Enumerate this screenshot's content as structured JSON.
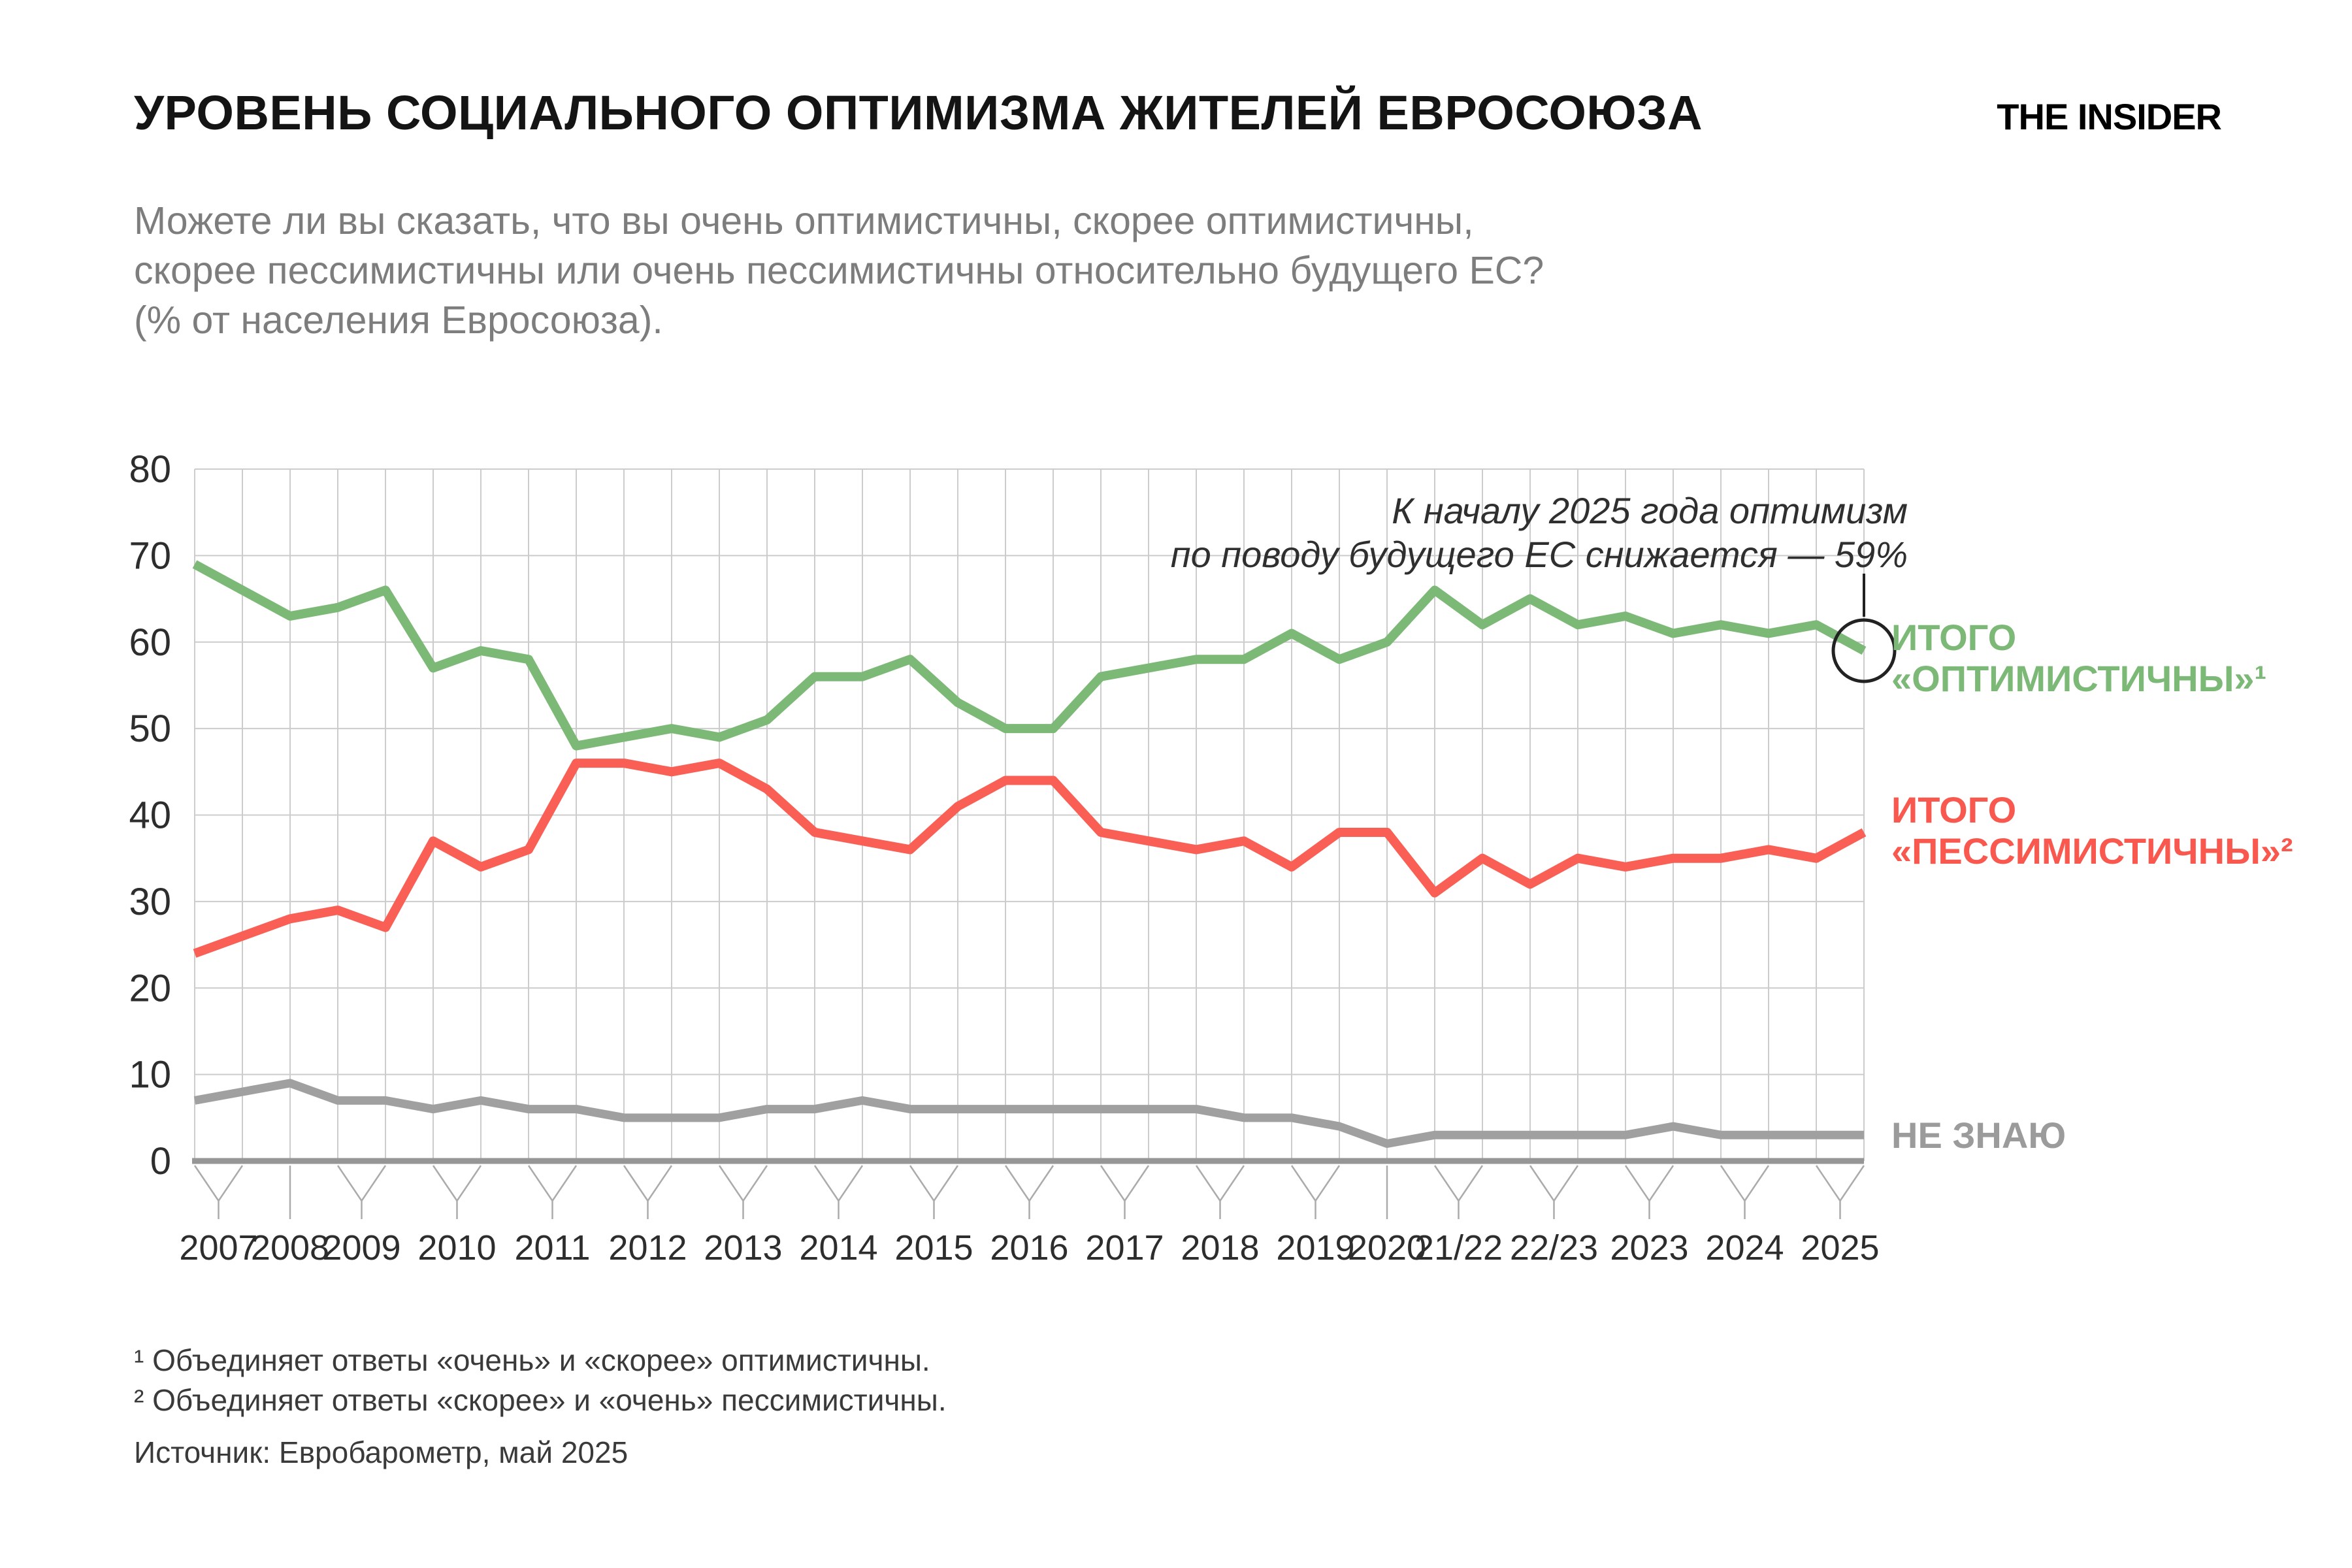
{
  "page": {
    "title": "УРОВЕНЬ СОЦИАЛЬНОГО ОПТИМИЗМА ЖИТЕЛЕЙ ЕВРОСОЮЗА",
    "logo": "THE INSIDER",
    "subtitle_lines": [
      "Можете ли вы сказать, что вы очень оптимистичны, скорее оптимистичны,",
      "скорее пессимистичны или очень пессимистичны относительно будущего ЕС?",
      "(% от населения Евросоюза)."
    ],
    "footnote1": "¹ Объединяет ответы «очень» и «скорее» оптимистичны.",
    "footnote2": "² Объединяет ответы «скорее» и «очень» пессимистичны.",
    "source": "Источник: Евробарометр, май 2025"
  },
  "chart_data": {
    "type": "line",
    "y_axis": {
      "min": 0,
      "max": 80,
      "tick_step": 10,
      "ticks": [
        0,
        10,
        20,
        30,
        40,
        50,
        60,
        70,
        80
      ],
      "grid": true
    },
    "x_axis": {
      "year_groups": [
        {
          "label": "2007",
          "points": [
            0,
            1
          ]
        },
        {
          "label": "2008",
          "points": [
            2
          ]
        },
        {
          "label": "2009",
          "points": [
            3,
            4
          ]
        },
        {
          "label": "2010",
          "points": [
            5,
            6
          ]
        },
        {
          "label": "2011",
          "points": [
            7,
            8
          ]
        },
        {
          "label": "2012",
          "points": [
            9,
            10
          ]
        },
        {
          "label": "2013",
          "points": [
            11,
            12
          ]
        },
        {
          "label": "2014",
          "points": [
            13,
            14
          ]
        },
        {
          "label": "2015",
          "points": [
            15,
            16
          ]
        },
        {
          "label": "2016",
          "points": [
            17,
            18
          ]
        },
        {
          "label": "2017",
          "points": [
            19,
            20
          ]
        },
        {
          "label": "2018",
          "points": [
            21,
            22
          ]
        },
        {
          "label": "2019",
          "points": [
            23,
            24
          ]
        },
        {
          "label": "2020",
          "points": [
            25
          ]
        },
        {
          "label": "21/22",
          "points": [
            26,
            27
          ]
        },
        {
          "label": "22/23",
          "points": [
            28,
            29
          ]
        },
        {
          "label": "2023",
          "points": [
            30,
            31
          ]
        },
        {
          "label": "2024",
          "points": [
            32,
            33
          ]
        },
        {
          "label": "2025",
          "points": [
            34,
            35
          ]
        }
      ]
    },
    "series": [
      {
        "id": "optimistic",
        "name": "ИТОГО «ОПТИМИСТИЧНЫ»",
        "color": "#7cb977",
        "width": 14,
        "values": [
          69,
          66,
          63,
          64,
          66,
          57,
          59,
          58,
          48,
          49,
          50,
          49,
          51,
          56,
          56,
          58,
          53,
          50,
          50,
          56,
          57,
          58,
          58,
          61,
          58,
          60,
          66,
          62,
          65,
          62,
          63,
          61,
          62,
          61,
          62,
          59
        ]
      },
      {
        "id": "pessimistic",
        "name": "ИТОГО «ПЕССИМИСТИЧНЫ»",
        "color": "#fa5f55",
        "width": 14,
        "values": [
          24,
          26,
          28,
          29,
          27,
          37,
          34,
          36,
          46,
          46,
          45,
          46,
          43,
          38,
          37,
          36,
          41,
          44,
          44,
          38,
          37,
          36,
          37,
          34,
          38,
          38,
          31,
          35,
          32,
          35,
          34,
          35,
          35,
          36,
          35,
          38
        ]
      },
      {
        "id": "dont_know",
        "name": "НЕ ЗНАЮ",
        "color": "#a0a0a0",
        "width": 13,
        "values": [
          7,
          8,
          9,
          7,
          7,
          6,
          7,
          6,
          6,
          5,
          5,
          5,
          6,
          6,
          7,
          6,
          6,
          6,
          6,
          6,
          6,
          6,
          5,
          5,
          4,
          2,
          3,
          3,
          3,
          3,
          3,
          4,
          3,
          3,
          3,
          3
        ]
      }
    ],
    "legend": {
      "optimistic": [
        "ИТОГО",
        "«ОПТИМИСТИЧНЫ»¹"
      ],
      "pessimistic": [
        "ИТОГО",
        "«ПЕССИМИСТИЧНЫ»²"
      ],
      "dont_know": [
        "НЕ ЗНАЮ"
      ]
    },
    "annotation": {
      "lines": [
        "К началу 2025 года оптимизм",
        "по поводу будущего ЕС снижается — 59%"
      ],
      "value": "59%",
      "target_series": "optimistic",
      "target_point_index": 35
    }
  },
  "colors": {
    "grid": "#cccccc",
    "axis": "#969696",
    "bracket": "#ababab",
    "tick_label": "#2d2d2d",
    "marker": "#222222",
    "title": "#141414",
    "subtitle": "#7d7d7d"
  }
}
